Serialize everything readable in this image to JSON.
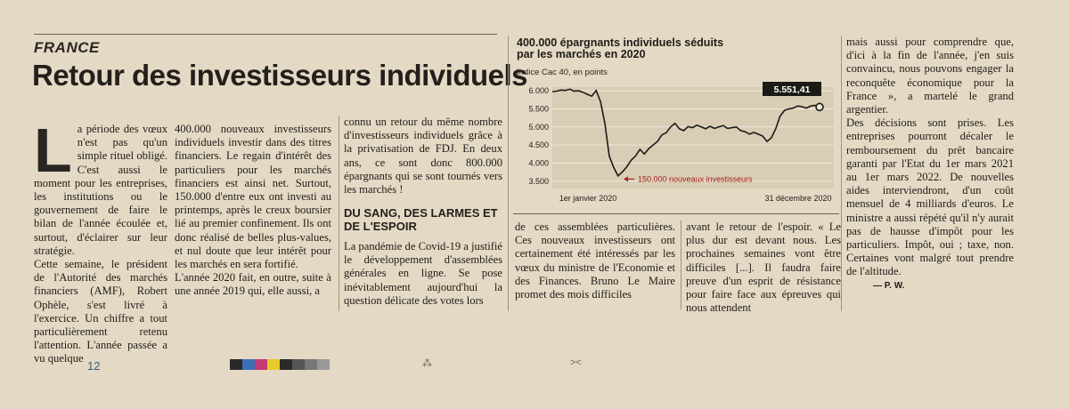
{
  "article": {
    "section": "FRANCE",
    "headline": "Retour des investisseurs individuels",
    "dropcap": "L",
    "col1": "a période des vœux n'est pas qu'un simple rituel obligé. C'est aussi le moment pour les entreprises, les institutions ou le gouvernement de faire le bilan de l'année écoulée et, surtout, d'éclairer sur leur stratégie.",
    "col1b": "Cette semaine, le président de l'Autorité des marchés financiers (AMF), Robert Ophèle, s'est livré à l'exercice. Un chiffre a tout particulièrement retenu l'attention. L'année passée a vu quelque",
    "col2": "400.000 nouveaux investisseurs individuels investir dans des titres financiers. Le regain d'intérêt des particuliers pour les marchés financiers est ainsi net. Surtout, 150.000 d'entre eux ont investi au printemps, après le creux boursier lié au premier confinement. Ils ont donc réalisé de belles plus-values, et nul doute que leur intérêt pour les marchés en sera fortifié.",
    "col2b": "L'année 2020 fait, en outre, suite à une année 2019 qui, elle aussi, a",
    "col3": "connu un retour du même nombre d'investisseurs individuels grâce à la privatisation de FDJ. En deux ans, ce sont donc 800.000 épargnants qui se sont tournés vers les marchés !",
    "subhead": "DU SANG, DES LARMES ET DE L'ESPOIR",
    "col3b": "La pandémie de Covid-19 a justifié le développement d'assemblées générales en ligne. Se pose inévitablement aujourd'hui la question délicate des votes lors",
    "col4": "de ces assemblées particulières. Ces nouveaux investisseurs ont certainement été intéressés par les vœux du ministre de l'Economie et des Finances. Bruno Le Maire promet des mois difficiles",
    "col5": "avant le retour de l'espoir. « Le plus dur est devant nous. Les prochaines semaines vont être difficiles [...]. Il faudra faire preuve d'un esprit de résistance pour faire face aux épreuves qui nous attendent",
    "col6a": "mais aussi pour comprendre que, d'ici à la fin de l'année, j'en suis convaincu, nous pouvons engager la reconquête économique pour la France », a martelé le grand argentier.",
    "col6b": "Des décisions sont prises. Les entreprises pourront décaler le remboursement du prêt bancaire garanti par l'Etat du 1er mars 2021 au 1er mars 2022. De nouvelles aides interviendront, d'un coût mensuel de 4 milliards d'euros. Le ministre a aussi répété qu'il n'y aurait pas de hausse d'impôt pour les particuliers. Impôt, oui ; taxe, non. Certaines vont malgré tout prendre de l'altitude.",
    "signature": "— P. W."
  },
  "chart_data": {
    "type": "line",
    "title": "400.000 épargnants individuels séduits par les marchés en 2020",
    "subtitle": "Indice Cac 40, en points",
    "ylim": [
      3300,
      6100
    ],
    "yticks": [
      "6.000",
      "5.500",
      "5.000",
      "4.500",
      "4.000",
      "3.500"
    ],
    "ytick_values": [
      6000,
      5500,
      5000,
      4500,
      4000,
      3500
    ],
    "xlabels": [
      "1er janvier 2020",
      "31 décembre 2020"
    ],
    "last_value_label": "5.551,41",
    "annotation": "150.000 nouveaux investisseurs",
    "grid": true,
    "series": [
      {
        "values": [
          5978,
          5990,
          6020,
          6010,
          6040,
          5990,
          6000,
          5960,
          5900,
          5850,
          6010,
          5700,
          5100,
          4200,
          3880,
          3650,
          3760,
          3900,
          4080,
          4200,
          4380,
          4250,
          4400,
          4500,
          4600,
          4780,
          4840,
          5000,
          5100,
          4950,
          4900,
          5010,
          4980,
          5050,
          5000,
          4950,
          5020,
          4960,
          5000,
          5040,
          4960,
          4980,
          5000,
          4900,
          4870,
          4800,
          4850,
          4800,
          4750,
          4600,
          4700,
          4950,
          5300,
          5460,
          5500,
          5520,
          5580,
          5560,
          5520,
          5580,
          5600,
          5551
        ]
      }
    ],
    "colors": {
      "line": "#1c1a17",
      "annotation": "#a8231f",
      "label_bg": "#1c1a17"
    }
  },
  "footer": {
    "page_number": "12",
    "marks": [
      "⁂",
      "><"
    ]
  }
}
